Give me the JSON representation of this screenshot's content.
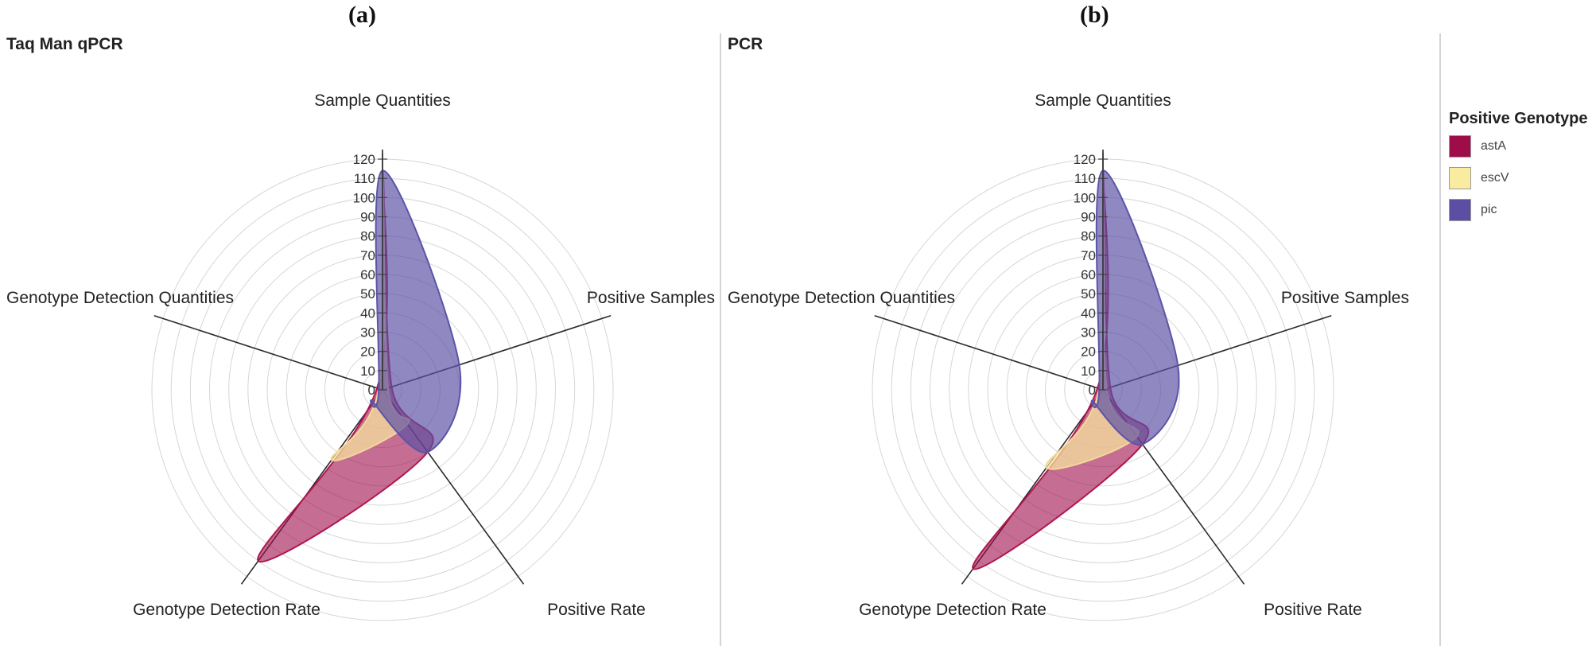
{
  "chart_data": [
    {
      "type": "radar",
      "panel_letter": "(a)",
      "title": "Taq Man qPCR",
      "axes": [
        "Sample Quantities",
        "Positive Samples",
        "Positive Rate",
        "Genotype Detection Rate",
        "Genotype Detection Quantities"
      ],
      "radial_range": [
        0,
        120
      ],
      "tick_values": [
        0,
        10,
        20,
        30,
        40,
        50,
        60,
        70,
        80,
        90,
        100,
        110,
        120
      ],
      "series": [
        {
          "name": "astA",
          "values": [
            114,
            5,
            40,
            110,
            3
          ]
        },
        {
          "name": "escV",
          "values": [
            114,
            3,
            22,
            45,
            2
          ]
        },
        {
          "name": "pic",
          "values": [
            114,
            42,
            40,
            8,
            2
          ]
        }
      ]
    },
    {
      "type": "radar",
      "panel_letter": "(b)",
      "title": "PCR",
      "axes": [
        "Sample Quantities",
        "Positive Samples",
        "Positive Rate",
        "Genotype Detection Rate",
        "Genotype Detection Quantities"
      ],
      "radial_range": [
        0,
        120
      ],
      "tick_values": [
        0,
        10,
        20,
        30,
        40,
        50,
        60,
        70,
        80,
        90,
        100,
        110,
        120
      ],
      "series": [
        {
          "name": "astA",
          "values": [
            114,
            4,
            35,
            115,
            3
          ]
        },
        {
          "name": "escV",
          "values": [
            114,
            2,
            30,
            50,
            2
          ]
        },
        {
          "name": "pic",
          "values": [
            114,
            41,
            35,
            8,
            2
          ]
        }
      ]
    }
  ],
  "legend": {
    "title": "Positive Genotype",
    "items": [
      {
        "label": "astA",
        "color": "#9e0c4a"
      },
      {
        "label": "escV",
        "color": "#f9eba0"
      },
      {
        "label": "pic",
        "color": "#5c4fa3"
      }
    ]
  }
}
